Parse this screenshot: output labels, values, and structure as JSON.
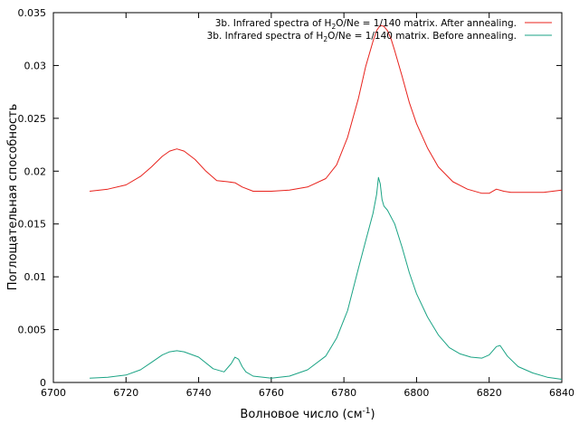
{
  "chart_data": {
    "type": "line",
    "xlabel_main": "Волновое число (см",
    "xlabel_sup": "-1",
    "xlabel_tail": ")",
    "ylabel": "Поглощательная способность",
    "xlim": [
      6700,
      6840
    ],
    "ylim": [
      0,
      0.035
    ],
    "x_ticks": [
      "6700",
      "6720",
      "6740",
      "6760",
      "6780",
      "6800",
      "6820",
      "6840"
    ],
    "y_ticks": [
      "0",
      "0.005",
      "0.01",
      "0.015",
      "0.02",
      "0.025",
      "0.03",
      "0.035"
    ],
    "grid": false,
    "legend_position": "top-right",
    "series": [
      {
        "name": "3b. Infrared spectra of H2O/Ne = 1/140 matrix. After annealing.",
        "legend_pre": "3b. Infrared spectra of H",
        "legend_sub": "2",
        "legend_post": "O/Ne = 1/140 matrix. After annealing.",
        "color": "#e8211b",
        "x": [
          6710,
          6715,
          6720,
          6724,
          6727,
          6730,
          6732,
          6734,
          6736,
          6739,
          6742,
          6745,
          6748,
          6750,
          6752,
          6755,
          6760,
          6765,
          6770,
          6775,
          6778,
          6781,
          6784,
          6786,
          6788,
          6789,
          6790,
          6791,
          6792,
          6793,
          6794,
          6796,
          6798,
          6800,
          6803,
          6806,
          6810,
          6814,
          6818,
          6820,
          6822,
          6824,
          6826,
          6830,
          6835,
          6840
        ],
        "y": [
          0.0181,
          0.0183,
          0.0187,
          0.0195,
          0.0204,
          0.0214,
          0.0219,
          0.0221,
          0.0219,
          0.0211,
          0.02,
          0.0191,
          0.019,
          0.0189,
          0.0185,
          0.0181,
          0.0181,
          0.0182,
          0.0185,
          0.0193,
          0.0206,
          0.0232,
          0.0269,
          0.0299,
          0.0323,
          0.0333,
          0.0338,
          0.0337,
          0.0333,
          0.0325,
          0.0314,
          0.029,
          0.0265,
          0.0245,
          0.0222,
          0.0204,
          0.019,
          0.0183,
          0.0179,
          0.0179,
          0.0183,
          0.0181,
          0.018,
          0.018,
          0.018,
          0.0182
        ]
      },
      {
        "name": "3b. Infrared spectra of H2O/Ne = 1/140 matrix. Before annealing.",
        "legend_pre": "3b. Infrared spectra of H",
        "legend_sub": "2",
        "legend_post": "O/Ne = 1/140 matrix. Before annealing.",
        "color": "#1aa384",
        "x": [
          6710,
          6715,
          6720,
          6724,
          6727,
          6730,
          6732,
          6734,
          6736,
          6740,
          6744,
          6747,
          6749,
          6750,
          6751,
          6752,
          6753,
          6755,
          6760,
          6765,
          6770,
          6775,
          6778,
          6781,
          6784,
          6786,
          6788,
          6789,
          6789.5,
          6790,
          6790.5,
          6791,
          6792,
          6794,
          6796,
          6798,
          6800,
          6803,
          6806,
          6809,
          6812,
          6815,
          6818,
          6820,
          6822,
          6823,
          6825,
          6828,
          6832,
          6836,
          6840
        ],
        "y": [
          0.0004,
          0.0005,
          0.0007,
          0.0012,
          0.0019,
          0.0026,
          0.0029,
          0.003,
          0.0029,
          0.0024,
          0.0013,
          0.001,
          0.0018,
          0.0024,
          0.0022,
          0.0015,
          0.001,
          0.0006,
          0.0004,
          0.0006,
          0.0012,
          0.0025,
          0.0042,
          0.0068,
          0.0108,
          0.0134,
          0.016,
          0.0178,
          0.0194,
          0.0188,
          0.0173,
          0.0167,
          0.0163,
          0.015,
          0.0128,
          0.0104,
          0.0084,
          0.0062,
          0.0045,
          0.0033,
          0.0027,
          0.0024,
          0.0023,
          0.0026,
          0.0034,
          0.0035,
          0.0025,
          0.0015,
          0.0009,
          0.0005,
          0.0003
        ]
      }
    ]
  }
}
